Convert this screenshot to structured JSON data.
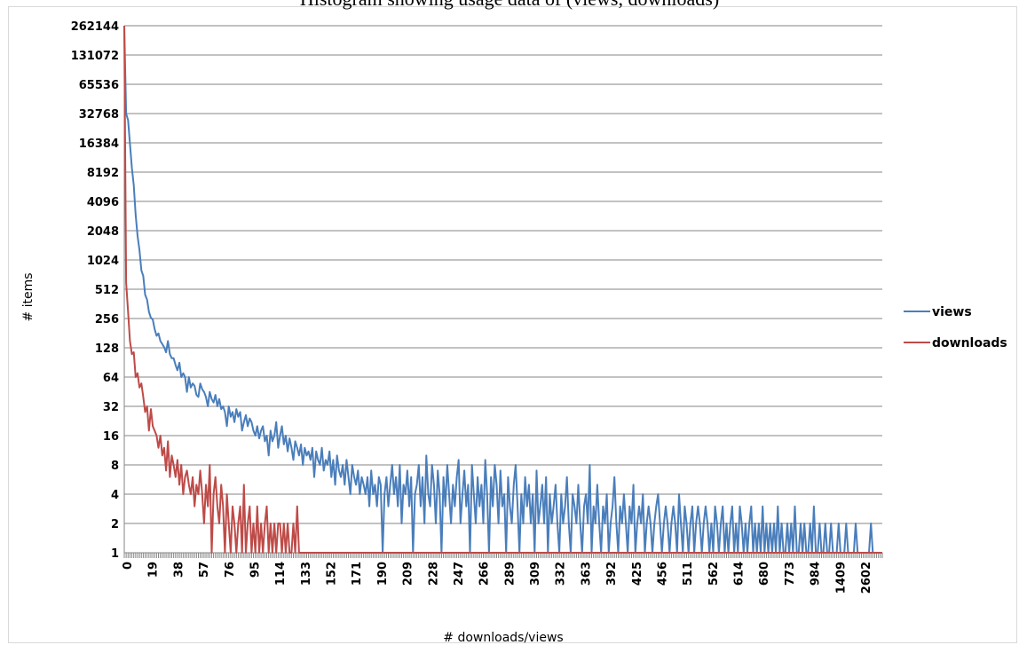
{
  "chart_data": {
    "type": "line",
    "title": "Histogram showing usage data of (views, downloads)",
    "xlabel": "# downloads/views",
    "ylabel": "# items",
    "yscale": "log2",
    "ylim": [
      1,
      262144
    ],
    "y_ticks": [
      "1",
      "2",
      "4",
      "8",
      "16",
      "32",
      "64",
      "128",
      "256",
      "512",
      "1024",
      "2048",
      "4096",
      "8192",
      "16384",
      "32768",
      "65536",
      "131072",
      "262144"
    ],
    "x_ticks": [
      "0",
      "19",
      "38",
      "57",
      "76",
      "95",
      "114",
      "133",
      "152",
      "171",
      "190",
      "209",
      "228",
      "247",
      "266",
      "289",
      "309",
      "332",
      "363",
      "392",
      "425",
      "456",
      "511",
      "562",
      "614",
      "680",
      "773",
      "984",
      "1409",
      "2602"
    ],
    "grid": "horizontal",
    "legend_position": "right",
    "colors": {
      "views": "#4a7ebb",
      "downloads": "#be4b48",
      "grid": "#868686"
    },
    "series": [
      {
        "name": "views",
        "values": [
          262144,
          32768,
          28000,
          16000,
          9000,
          6000,
          3000,
          1800,
          1300,
          800,
          700,
          450,
          400,
          300,
          260,
          250,
          200,
          170,
          180,
          150,
          140,
          130,
          115,
          150,
          110,
          100,
          100,
          85,
          75,
          90,
          64,
          70,
          64,
          45,
          64,
          50,
          55,
          52,
          42,
          40,
          55,
          48,
          45,
          40,
          32,
          45,
          38,
          35,
          42,
          32,
          38,
          30,
          32,
          28,
          20,
          32,
          25,
          28,
          22,
          30,
          25,
          28,
          18,
          22,
          26,
          20,
          24,
          22,
          18,
          16,
          20,
          15,
          18,
          20,
          14,
          16,
          10,
          18,
          14,
          16,
          22,
          12,
          16,
          20,
          13,
          16,
          11,
          15,
          12,
          9,
          14,
          12,
          10,
          13,
          8,
          12,
          10,
          11,
          9,
          12,
          6,
          11,
          9,
          8,
          12,
          7,
          9,
          8,
          11,
          6,
          9,
          5,
          10,
          7,
          6,
          8,
          5,
          9,
          6,
          4,
          8,
          6,
          5,
          7,
          4,
          6,
          5,
          4,
          6,
          3,
          7,
          4,
          5,
          3,
          6,
          5,
          1,
          4,
          6,
          3,
          5,
          8,
          4,
          6,
          3,
          8,
          2,
          5,
          4,
          7,
          3,
          6,
          1,
          4,
          5,
          8,
          3,
          6,
          2,
          10,
          4,
          3,
          8,
          5,
          2,
          7,
          4,
          1,
          6,
          3,
          8,
          4,
          2,
          5,
          3,
          6,
          9,
          2,
          4,
          7,
          3,
          5,
          1,
          8,
          4,
          2,
          6,
          3,
          5,
          2,
          9,
          4,
          1,
          6,
          3,
          8,
          5,
          2,
          7,
          3,
          4,
          1,
          6,
          3,
          2,
          5,
          8,
          3,
          1,
          4,
          2,
          6,
          3,
          5,
          2,
          4,
          1,
          7,
          2,
          3,
          5,
          2,
          6,
          1,
          4,
          2,
          3,
          5,
          2,
          1,
          4,
          2,
          3,
          6,
          2,
          1,
          4,
          3,
          2,
          5,
          2,
          1,
          3,
          4,
          2,
          8,
          1,
          3,
          2,
          5,
          2,
          1,
          3,
          2,
          4,
          1,
          2,
          3,
          6,
          2,
          1,
          3,
          2,
          4,
          2,
          1,
          3,
          2,
          5,
          1,
          2,
          3,
          2,
          4,
          1,
          2,
          3,
          2,
          1,
          2,
          3,
          4,
          2,
          1,
          2,
          3,
          2,
          1,
          2,
          3,
          2,
          1,
          4,
          2,
          1,
          3,
          2,
          1,
          2,
          3,
          1,
          2,
          3,
          2,
          1,
          2,
          3,
          2,
          1,
          2,
          1,
          3,
          2,
          1,
          2,
          3,
          1,
          2,
          1,
          2,
          3,
          1,
          2,
          1,
          3,
          2,
          1,
          2,
          1,
          2,
          3,
          1,
          2,
          1,
          2,
          1,
          3,
          1,
          2,
          1,
          2,
          1,
          2,
          1,
          3,
          1,
          2,
          1,
          1,
          2,
          1,
          2,
          1,
          3,
          1,
          1,
          2,
          1,
          2,
          1,
          1,
          2,
          1,
          3,
          1,
          1,
          2,
          1,
          1,
          2,
          1,
          1,
          2,
          1,
          1,
          1,
          2,
          1,
          1,
          1,
          2,
          1,
          1,
          1,
          1,
          2,
          1,
          1,
          1,
          1,
          1,
          1,
          1,
          2,
          1,
          1,
          1,
          1,
          1,
          1
        ]
      },
      {
        "name": "downloads",
        "values": [
          262144,
          600,
          300,
          150,
          110,
          115,
          64,
          70,
          50,
          55,
          40,
          28,
          32,
          18,
          30,
          20,
          18,
          16,
          12,
          16,
          10,
          12,
          7,
          14,
          6,
          10,
          8,
          6,
          9,
          5,
          8,
          4,
          6,
          7,
          5,
          4,
          6,
          3,
          5,
          4,
          7,
          4,
          2,
          5,
          3,
          8,
          1,
          4,
          6,
          3,
          2,
          5,
          3,
          1,
          4,
          2,
          1,
          3,
          2,
          1,
          2,
          3,
          1,
          5,
          1,
          2,
          3,
          1,
          2,
          1,
          3,
          1,
          2,
          1,
          2,
          3,
          1,
          2,
          1,
          2,
          1,
          2,
          2,
          1,
          2,
          1,
          2,
          1,
          1,
          2,
          1,
          3,
          1,
          1,
          1,
          1,
          1,
          1,
          1,
          1,
          1,
          1,
          1,
          1,
          1,
          1,
          1,
          1,
          1,
          1,
          1,
          1,
          1,
          1,
          1,
          1,
          1,
          1,
          1,
          1,
          1
        ]
      }
    ]
  }
}
